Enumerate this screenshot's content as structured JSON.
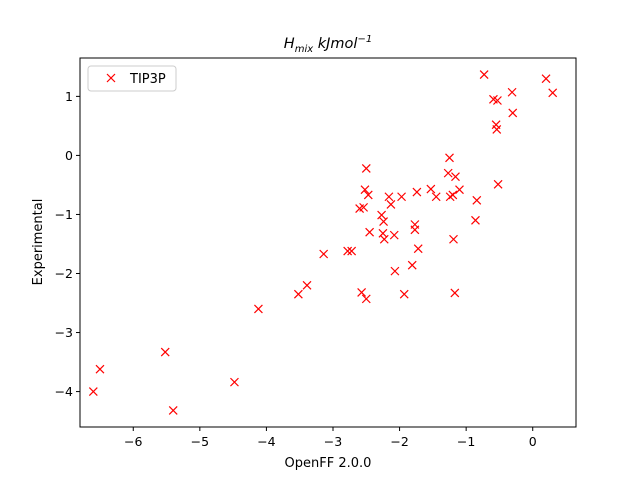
{
  "chart_data": {
    "type": "scatter",
    "title": {
      "base": "H",
      "sub": "mix",
      "unit": " kJmol",
      "sup": "−1"
    },
    "xlabel": "OpenFF 2.0.0",
    "ylabel": "Experimental",
    "xlim": [
      -6.8,
      0.65
    ],
    "ylim": [
      -4.6,
      1.65
    ],
    "xticks": [
      -6,
      -5,
      -4,
      -3,
      -2,
      -1,
      0
    ],
    "yticks": [
      -4,
      -3,
      -2,
      -1,
      0,
      1
    ],
    "xtick_labels": [
      "−6",
      "−5",
      "−4",
      "−3",
      "−2",
      "−1",
      "0"
    ],
    "ytick_labels": [
      "−4",
      "−3",
      "−2",
      "−1",
      "0",
      "1"
    ],
    "grid": false,
    "legend_position": "upper-left",
    "marker": "x",
    "series": [
      {
        "name": "TIP3P",
        "color": "#ff0000",
        "x": [
          -6.6,
          -6.5,
          -5.52,
          -5.4,
          -4.48,
          -4.12,
          -3.52,
          -3.39,
          -3.14,
          -2.78,
          -2.72,
          -2.6,
          -2.57,
          -2.54,
          -2.52,
          -2.5,
          -2.5,
          -2.47,
          -2.45,
          -2.27,
          -2.25,
          -2.24,
          -2.23,
          -2.16,
          -2.13,
          -2.08,
          -2.07,
          -1.97,
          -1.93,
          -1.81,
          -1.77,
          -1.77,
          -1.74,
          -1.72,
          -1.53,
          -1.45,
          -1.27,
          -1.25,
          -1.24,
          -1.2,
          -1.19,
          -1.17,
          -1.16,
          -1.1,
          -0.86,
          -0.84,
          -0.73,
          -0.59,
          -0.55,
          -0.54,
          -0.53,
          -0.52,
          -0.31,
          -0.3,
          0.2,
          0.3
        ],
        "y": [
          -4.0,
          -3.62,
          -3.33,
          -4.32,
          -3.84,
          -2.6,
          -2.35,
          -2.2,
          -1.67,
          -1.62,
          -1.62,
          -0.9,
          -2.32,
          -0.88,
          -0.58,
          -0.22,
          -2.43,
          -0.67,
          -1.3,
          -1.01,
          -1.32,
          -1.12,
          -1.42,
          -0.7,
          -0.83,
          -1.35,
          -1.96,
          -0.7,
          -2.35,
          -1.86,
          -1.17,
          -1.26,
          -0.62,
          -1.58,
          -0.57,
          -0.7,
          -0.3,
          -0.04,
          -0.7,
          -0.67,
          -1.42,
          -2.33,
          -0.36,
          -0.58,
          -1.1,
          -0.76,
          1.37,
          0.95,
          0.52,
          0.44,
          0.93,
          -0.49,
          1.07,
          0.72,
          1.3,
          1.06
        ]
      }
    ]
  }
}
